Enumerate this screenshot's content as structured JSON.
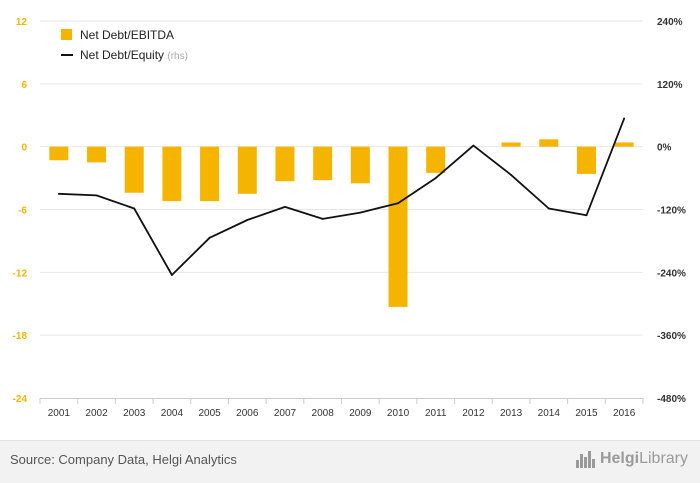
{
  "chart_data": {
    "type": "bar",
    "categories": [
      "2001",
      "2002",
      "2003",
      "2004",
      "2005",
      "2006",
      "2007",
      "2008",
      "2009",
      "2010",
      "2011",
      "2012",
      "2013",
      "2014",
      "2015",
      "2016"
    ],
    "series": [
      {
        "name": "Net Debt/EBITDA",
        "type": "bar",
        "axis": "left",
        "color": "#f5b400",
        "values": [
          -1.3,
          -1.5,
          -4.4,
          -5.2,
          -5.2,
          -4.5,
          -3.3,
          -3.2,
          -3.5,
          -15.3,
          -2.5,
          0.0,
          0.4,
          0.7,
          -2.6,
          0.4
        ]
      },
      {
        "name": "Net Debt/Equity",
        "type": "line",
        "axis": "right",
        "color": "#111111",
        "values": [
          -90,
          -93,
          -118,
          -245,
          -174,
          -140,
          -115,
          -138,
          -126,
          -108,
          -60,
          2,
          -54,
          -118,
          -131,
          54
        ]
      }
    ],
    "legend_suffix": "(rhs)",
    "y_left": {
      "min": -24,
      "max": 12,
      "ticks": [
        12,
        6,
        0,
        -6,
        -12,
        -18,
        -24
      ],
      "tick_labels": [
        "12",
        "6",
        "0",
        "-6",
        "-12",
        "-18",
        "-24"
      ],
      "color": "#f5b400"
    },
    "y_right": {
      "min": -480,
      "max": 240,
      "ticks": [
        240,
        120,
        0,
        -120,
        -240,
        -360,
        -480
      ],
      "tick_labels": [
        "240%",
        "120%",
        "0%",
        "-120%",
        "-240%",
        "-360%",
        "-480%"
      ]
    },
    "grid": true,
    "legend_position": "top-left"
  },
  "footer": {
    "source": "Source: Company Data, Helgi Analytics",
    "logo_part1": "Helgi",
    "logo_part2": "Library"
  }
}
